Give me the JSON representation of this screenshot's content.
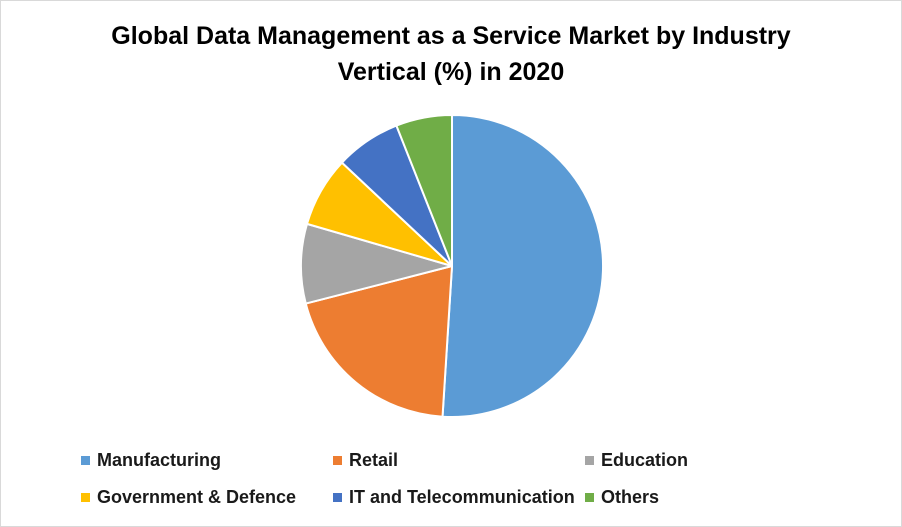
{
  "chart_data": {
    "type": "pie",
    "title": "Global Data Management as a Service Market by Industry Vertical (%) in 2020",
    "title_lines": [
      "Global Data Management as a Service Market by Industry",
      "Vertical (%) in 2020"
    ],
    "categories": [
      "Manufacturing",
      "Retail",
      "Education",
      "Government & Defence",
      "IT and Telecommunication",
      "Others"
    ],
    "values": [
      51,
      20,
      8.5,
      7.5,
      7,
      6
    ],
    "colors": [
      "#5b9bd5",
      "#ed7d31",
      "#a5a5a5",
      "#ffc000",
      "#4472c4",
      "#70ad47"
    ],
    "legend_position": "bottom"
  }
}
